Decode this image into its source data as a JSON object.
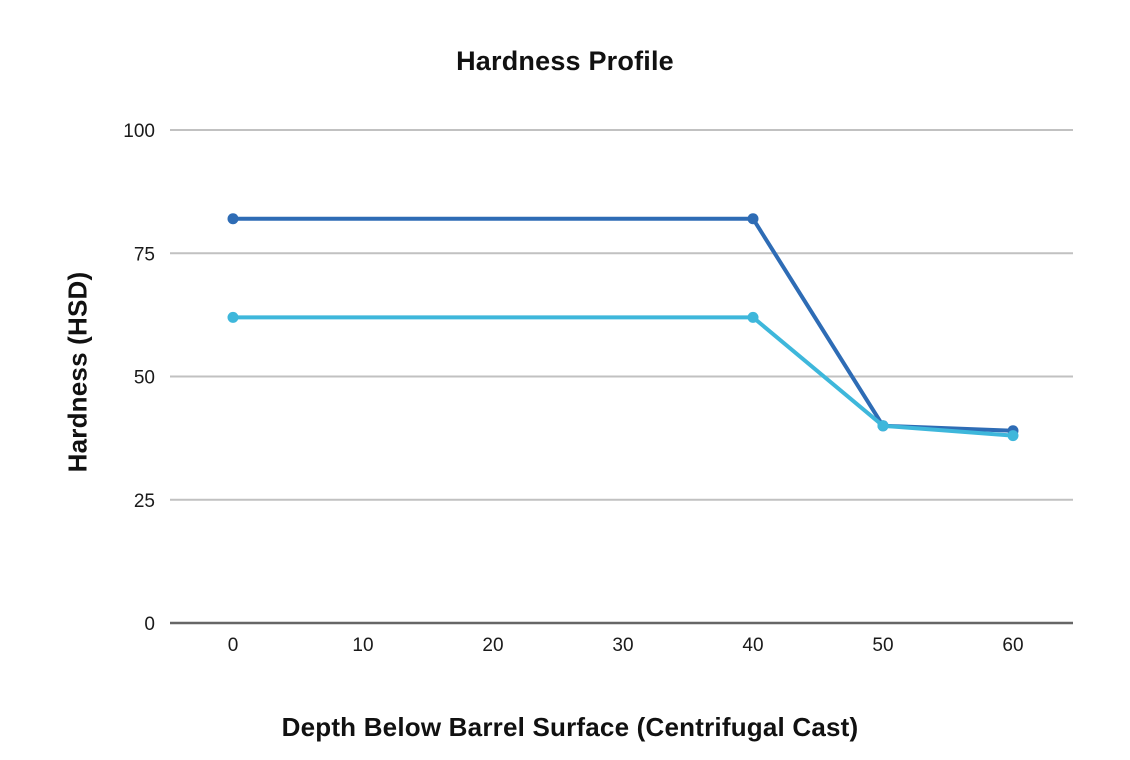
{
  "chart_data": {
    "type": "line",
    "title": "Hardness Profile",
    "xlabel": "Depth Below Barrel Surface (Centrifugal Cast)",
    "ylabel": "Hardness (HSD)",
    "x": [
      0,
      40,
      50,
      60
    ],
    "series": [
      {
        "name": "dark-blue-line",
        "color": "#2e6cb5",
        "values": [
          82,
          82,
          40,
          39
        ]
      },
      {
        "name": "light-blue-line",
        "color": "#3eb7db",
        "values": [
          62,
          62,
          40,
          38
        ]
      }
    ],
    "xticks": [
      0,
      10,
      20,
      30,
      40,
      50,
      60
    ],
    "yticks": [
      0,
      25,
      50,
      75,
      100
    ],
    "ylim": [
      0,
      100
    ],
    "xlim": [
      -4.8,
      64.6
    ],
    "grid": "horizontal",
    "legend": false,
    "colors": {
      "gridline": "#c1c1c1",
      "axis_line": "#666666",
      "tick_label": "#1a1a1a",
      "title": "#111111",
      "background": "#ffffff"
    }
  }
}
